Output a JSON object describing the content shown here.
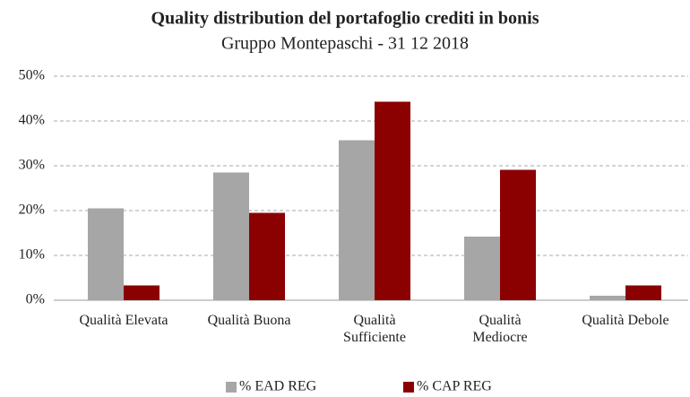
{
  "chart_data": {
    "type": "bar",
    "title": "Quality distribution del portafoglio crediti in bonis",
    "subtitle": "Gruppo Montepaschi - 31 12 2018",
    "categories": [
      "Qualità Elevata",
      "Qualità Buona",
      "Qualità Sufficiente",
      "Qualità Mediocre",
      "Qualità Debole"
    ],
    "series": [
      {
        "name": "% EAD REG",
        "color": "#a6a6a6",
        "values": [
          20.5,
          28.5,
          35.7,
          14.2,
          1.0
        ]
      },
      {
        "name": "% CAP REG",
        "color": "#8b0000",
        "values": [
          3.3,
          19.5,
          44.3,
          29.1,
          3.3
        ]
      }
    ],
    "ylim": [
      0,
      50
    ],
    "yticks": [
      {
        "value": 0,
        "label": "0%"
      },
      {
        "value": 10,
        "label": "10%"
      },
      {
        "value": 20,
        "label": "20%"
      },
      {
        "value": 30,
        "label": "30%"
      },
      {
        "value": 40,
        "label": "40%"
      },
      {
        "value": 50,
        "label": "50%"
      }
    ],
    "grid": true,
    "legend": "bottom"
  }
}
